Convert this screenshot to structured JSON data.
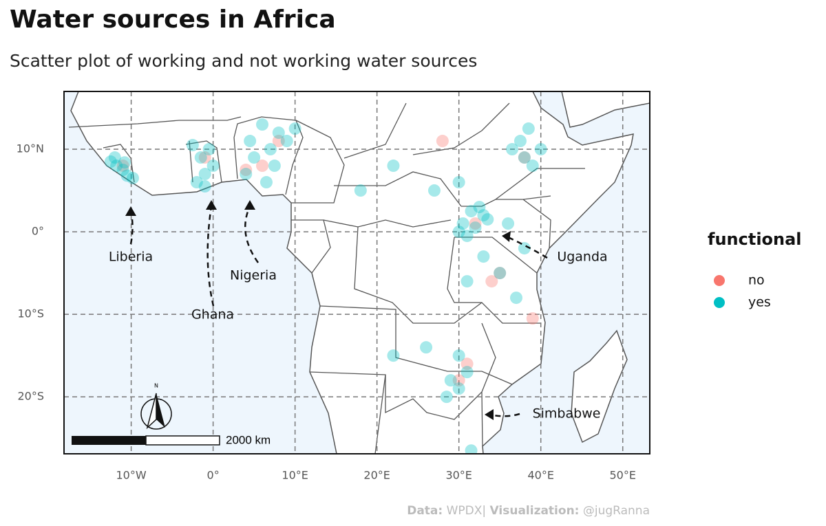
{
  "chart_data": {
    "type": "scatter",
    "title": "Water sources in Africa",
    "subtitle": "Scatter plot of working and not working water sources",
    "xlim": [
      -18.2,
      53.3
    ],
    "ylim": [
      -26.9,
      17
    ],
    "xticks": [
      {
        "value": -10,
        "label": "10°W"
      },
      {
        "value": 0,
        "label": "0°"
      },
      {
        "value": 10,
        "label": "10°E"
      },
      {
        "value": 20,
        "label": "20°E"
      },
      {
        "value": 30,
        "label": "30°E"
      },
      {
        "value": 40,
        "label": "40°E"
      },
      {
        "value": 50,
        "label": "50°E"
      }
    ],
    "yticks": [
      {
        "value": 10,
        "label": "10°N"
      },
      {
        "value": 0,
        "label": "0°"
      },
      {
        "value": -10,
        "label": "10°S"
      },
      {
        "value": -20,
        "label": "20°S"
      }
    ],
    "grid": true,
    "legend_title": "functional",
    "series": [
      {
        "name": "no",
        "color": "#f8766d",
        "x": [
          -11,
          -1,
          6,
          8,
          4,
          32,
          35,
          34,
          31,
          30,
          38,
          28,
          39
        ],
        "y": [
          8,
          9,
          8,
          11,
          7.5,
          1,
          -5,
          -6,
          -16,
          -18,
          9,
          11,
          -10.5
        ]
      },
      {
        "name": "yes",
        "color": "#00bfc4",
        "x": [
          -12.5,
          -11.8,
          -11,
          -10.5,
          -9.8,
          -12,
          -10.8,
          -2,
          -1,
          -1.5,
          -0.5,
          -2.5,
          0,
          -1,
          4,
          5,
          7,
          8,
          6,
          9,
          10,
          4.5,
          7.5,
          6.5,
          30.5,
          31.5,
          32.5,
          33.5,
          32,
          30,
          31,
          33,
          38,
          37.5,
          39,
          40,
          38.5,
          36.5,
          33,
          35,
          31,
          37,
          38,
          36,
          29,
          30,
          31,
          28.5,
          26,
          22,
          30,
          18,
          27,
          30,
          22,
          31.5
        ],
        "y": [
          8.5,
          8,
          7.5,
          6.8,
          6.5,
          9,
          8.4,
          6,
          7,
          9,
          10,
          10.5,
          8,
          5.5,
          7,
          9,
          10,
          12,
          13,
          11,
          12.5,
          11,
          8,
          6,
          1,
          2.5,
          3,
          1.5,
          0.5,
          0,
          -0.5,
          2,
          9,
          11,
          8,
          10,
          12.5,
          10,
          -3,
          -5,
          -6,
          -8,
          -2,
          1,
          -18,
          -19,
          -17,
          -20,
          -14,
          -15,
          -15,
          5,
          5,
          6,
          8,
          -26.5
        ]
      }
    ],
    "annotations": [
      "Liberia",
      "Ghana",
      "Nigeria",
      "Uganda",
      "Simbabwe"
    ],
    "scale_bar_label": "2000 km",
    "north_label": "N",
    "caption": {
      "data_label": "Data:",
      "data_value": "WPDX|",
      "viz_label": "Visualization:",
      "viz_value": "@jugRanna"
    }
  }
}
